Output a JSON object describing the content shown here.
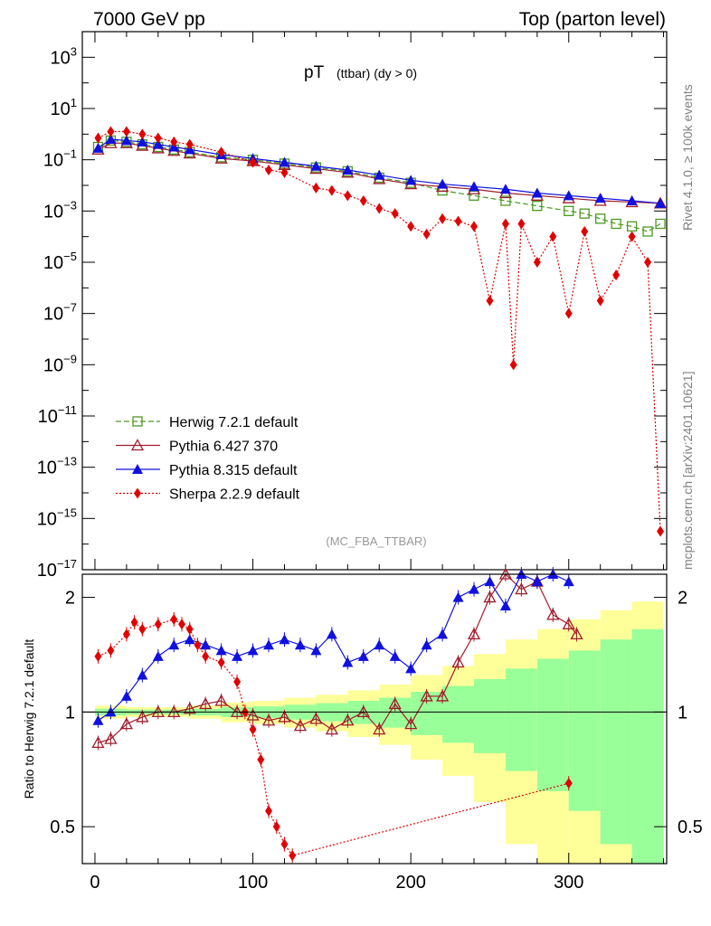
{
  "header": {
    "left": "7000 GeV pp",
    "right": "Top (parton level)"
  },
  "side_labels": {
    "rivet": "Rivet 4.1.0, ≥ 100k events",
    "source": "mcplots.cern.ch [arXiv:2401.10621]"
  },
  "chart_data": [
    {
      "type": "line",
      "panel": "main",
      "title": "pT",
      "title_sub": "(ttbar) (dy > 0)",
      "watermark": "(MC_FBA_TTBAR)",
      "yscale": "log",
      "xlim": [
        -8,
        362
      ],
      "ylim_log10": [
        -17,
        4
      ],
      "ytick_labels": [
        "10^3",
        "10^1",
        "10^-1",
        "10^-3",
        "10^-5",
        "10^-7",
        "10^-9",
        "10^-11",
        "10^-13",
        "10^-15",
        "10^-17"
      ],
      "legend_position": "bottom-left",
      "series": [
        {
          "name": "Herwig 7.2.1 default",
          "color": "#4c9a1f",
          "marker": "open-square",
          "line": "dashed",
          "x": [
            2,
            10,
            20,
            30,
            40,
            50,
            60,
            80,
            100,
            120,
            140,
            160,
            180,
            200,
            220,
            240,
            260,
            280,
            300,
            310,
            320,
            330,
            340,
            350,
            358
          ],
          "log10y": [
            -0.5,
            -0.25,
            -0.3,
            -0.4,
            -0.5,
            -0.6,
            -0.7,
            -0.9,
            -1.0,
            -1.15,
            -1.3,
            -1.45,
            -1.7,
            -1.9,
            -2.2,
            -2.4,
            -2.6,
            -2.8,
            -3.0,
            -3.1,
            -3.3,
            -3.5,
            -3.6,
            -3.8,
            -3.5
          ]
        },
        {
          "name": "Pythia 6.427 370",
          "color": "#a01c2c",
          "marker": "open-triangle",
          "line": "solid",
          "x": [
            2,
            10,
            20,
            30,
            40,
            50,
            60,
            80,
            100,
            120,
            140,
            160,
            180,
            200,
            220,
            240,
            260,
            280,
            300,
            320,
            340,
            358
          ],
          "log10y": [
            -0.6,
            -0.35,
            -0.35,
            -0.45,
            -0.55,
            -0.65,
            -0.75,
            -0.95,
            -1.05,
            -1.2,
            -1.35,
            -1.5,
            -1.75,
            -1.95,
            -2.05,
            -2.15,
            -2.3,
            -2.4,
            -2.5,
            -2.6,
            -2.65,
            -2.7
          ]
        },
        {
          "name": "Pythia 8.315 default",
          "color": "#1010e0",
          "marker": "filled-triangle",
          "line": "solid",
          "x": [
            2,
            10,
            20,
            30,
            40,
            50,
            60,
            80,
            100,
            120,
            140,
            160,
            180,
            200,
            220,
            240,
            260,
            280,
            300,
            320,
            340,
            358
          ],
          "log10y": [
            -0.55,
            -0.2,
            -0.25,
            -0.3,
            -0.4,
            -0.5,
            -0.6,
            -0.8,
            -0.95,
            -1.1,
            -1.25,
            -1.4,
            -1.6,
            -1.8,
            -1.95,
            -2.05,
            -2.15,
            -2.3,
            -2.4,
            -2.5,
            -2.6,
            -2.7
          ]
        },
        {
          "name": "Sherpa 2.2.9 default",
          "color": "#e00000",
          "marker": "filled-diamond",
          "line": "dotted",
          "x": [
            2,
            10,
            20,
            30,
            40,
            50,
            60,
            80,
            100,
            110,
            120,
            140,
            150,
            160,
            170,
            180,
            190,
            200,
            210,
            220,
            230,
            240,
            250,
            260,
            265,
            270,
            280,
            290,
            300,
            310,
            320,
            330,
            340,
            350,
            358
          ],
          "log10y": [
            -0.15,
            0.1,
            0.1,
            0.0,
            -0.15,
            -0.3,
            -0.4,
            -0.7,
            -1.1,
            -1.4,
            -1.5,
            -2.1,
            -2.2,
            -2.4,
            -2.6,
            -2.9,
            -3.1,
            -3.6,
            -3.9,
            -3.3,
            -3.4,
            -3.6,
            -6.5,
            -3.5,
            -9.0,
            -3.5,
            -5.0,
            -4.0,
            -7.0,
            -3.8,
            -6.5,
            -5.5,
            -4.0,
            -5.0,
            -15.5
          ]
        }
      ]
    },
    {
      "type": "line",
      "panel": "ratio",
      "ylabel": "Ratio to Herwig 7.2.1 default",
      "xlabel": "",
      "yscale": "log",
      "xlim": [
        -8,
        362
      ],
      "ylim": [
        0.4,
        2.3
      ],
      "xtick_labels": [
        "0",
        "100",
        "200",
        "300"
      ],
      "ytick_labels": [
        "0.5",
        "1",
        "2"
      ],
      "reference_line": 1,
      "bands": {
        "x_edges": [
          0,
          20,
          40,
          60,
          80,
          100,
          120,
          140,
          160,
          180,
          200,
          220,
          240,
          260,
          280,
          300,
          320,
          340,
          360
        ],
        "yellow_half_width": [
          0.04,
          0.03,
          0.03,
          0.04,
          0.06,
          0.07,
          0.09,
          0.11,
          0.14,
          0.18,
          0.25,
          0.32,
          0.42,
          0.55,
          0.65,
          0.75,
          0.85,
          0.95
        ],
        "green_half_width": [
          0.02,
          0.015,
          0.015,
          0.02,
          0.03,
          0.035,
          0.045,
          0.055,
          0.07,
          0.09,
          0.13,
          0.17,
          0.22,
          0.3,
          0.38,
          0.45,
          0.55,
          0.65
        ]
      },
      "series": [
        {
          "name": "Pythia 6.427 370",
          "x": [
            2,
            10,
            20,
            30,
            40,
            50,
            60,
            70,
            80,
            90,
            100,
            110,
            120,
            130,
            140,
            150,
            160,
            170,
            180,
            190,
            200,
            210,
            220,
            230,
            240,
            250,
            260,
            270,
            280,
            290,
            300,
            305
          ],
          "y": [
            0.83,
            0.85,
            0.93,
            0.97,
            1.0,
            1.0,
            1.02,
            1.05,
            1.07,
            1.0,
            0.98,
            0.95,
            0.97,
            0.92,
            0.96,
            0.9,
            0.95,
            1.0,
            0.9,
            1.05,
            0.93,
            1.1,
            1.1,
            1.35,
            1.6,
            2.0,
            2.3,
            2.1,
            2.2,
            1.8,
            1.7,
            1.6
          ]
        },
        {
          "name": "Pythia 8.315 default",
          "x": [
            2,
            10,
            20,
            30,
            40,
            50,
            60,
            70,
            80,
            90,
            100,
            110,
            120,
            130,
            140,
            150,
            160,
            170,
            180,
            190,
            200,
            210,
            220,
            230,
            240,
            250,
            260,
            270,
            280,
            290,
            300
          ],
          "y": [
            0.95,
            1.0,
            1.1,
            1.25,
            1.4,
            1.5,
            1.55,
            1.5,
            1.45,
            1.4,
            1.45,
            1.5,
            1.55,
            1.5,
            1.45,
            1.6,
            1.35,
            1.4,
            1.5,
            1.4,
            1.3,
            1.5,
            1.6,
            2.0,
            2.1,
            2.2,
            1.9,
            2.3,
            2.2,
            2.3,
            2.2
          ]
        },
        {
          "name": "Sherpa 2.2.9 default",
          "x": [
            2,
            10,
            20,
            25,
            30,
            40,
            50,
            55,
            60,
            65,
            70,
            80,
            90,
            95,
            100,
            105,
            110,
            115,
            120,
            125,
            300
          ],
          "y": [
            1.4,
            1.45,
            1.6,
            1.72,
            1.65,
            1.7,
            1.75,
            1.7,
            1.65,
            1.5,
            1.4,
            1.35,
            1.2,
            1.0,
            0.9,
            0.75,
            0.55,
            0.5,
            0.45,
            0.42,
            0.65
          ]
        }
      ]
    }
  ]
}
